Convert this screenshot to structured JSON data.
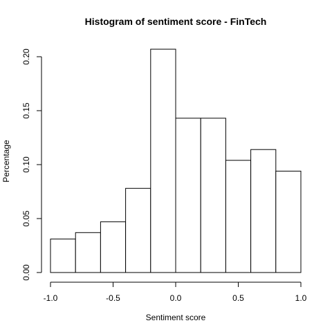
{
  "chart_data": {
    "type": "bar",
    "title": "Histogram of sentiment score - FinTech",
    "xlabel": "Sentiment score",
    "ylabel": "Percentage",
    "bin_edges": [
      -1.0,
      -0.8,
      -0.6,
      -0.4,
      -0.2,
      0.0,
      0.2,
      0.4,
      0.6,
      0.8,
      1.0
    ],
    "values": [
      0.031,
      0.037,
      0.047,
      0.078,
      0.207,
      0.143,
      0.143,
      0.104,
      0.114,
      0.094
    ],
    "xlim": [
      -1.0,
      1.0
    ],
    "ylim": [
      0,
      0.2
    ],
    "xticks": [
      -1.0,
      -0.5,
      0.0,
      0.5,
      1.0
    ],
    "xtick_labels": [
      "-1.0",
      "-0.5",
      "0.0",
      "0.5",
      "1.0"
    ],
    "yticks": [
      0,
      0.05,
      0.1,
      0.15,
      0.2
    ],
    "ytick_labels": [
      "0.00",
      "0.05",
      "0.10",
      "0.15",
      "0.20"
    ],
    "grid": false,
    "legend": "none"
  }
}
